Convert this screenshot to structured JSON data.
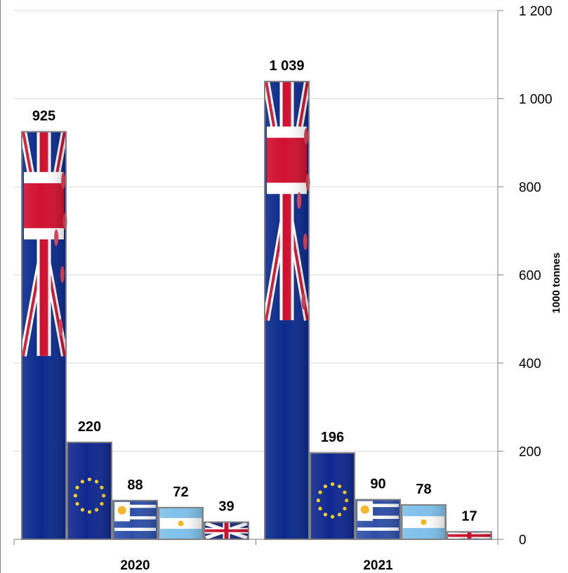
{
  "chart_data": {
    "type": "bar",
    "categories": [
      "2020",
      "2021"
    ],
    "series": [
      {
        "flag": "australia-flag",
        "values": [
          925,
          1039
        ],
        "color": "#0b2a8c"
      },
      {
        "flag": "eu-flag",
        "values": [
          220,
          196
        ],
        "color": "#10288f"
      },
      {
        "flag": "uruguay-flag",
        "values": [
          88,
          90
        ],
        "color": "#2f4fa8"
      },
      {
        "flag": "argentina-flag",
        "values": [
          72,
          78
        ],
        "color": "#7fc0ea"
      },
      {
        "flag": "uk-flag",
        "values": [
          39,
          17
        ],
        "color": "#1c2b7a"
      }
    ],
    "data_labels": [
      [
        "925",
        "220",
        "88",
        "72",
        "39"
      ],
      [
        "1 039",
        "196",
        "90",
        "78",
        "17"
      ]
    ],
    "ylabel": "1000 tonnes",
    "ylim": [
      0,
      1200
    ],
    "yticks": [
      0,
      200,
      400,
      600,
      800,
      1000,
      1200
    ],
    "ytick_labels": [
      "0",
      "200",
      "400",
      "600",
      "800",
      "1 000",
      "1 200"
    ],
    "y_axis_position": "right",
    "grid": true
  }
}
